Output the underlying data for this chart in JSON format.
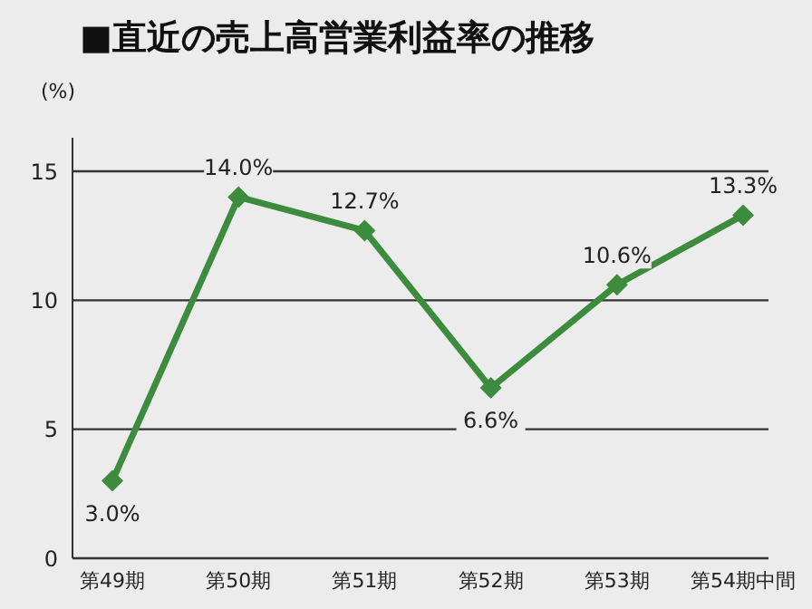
{
  "chart_data": {
    "type": "line",
    "title": "■直近の売上高営業利益率の推移",
    "ylabel": "(%)",
    "categories": [
      "第49期",
      "第50期",
      "第51期",
      "第52期",
      "第53期",
      "第54期中間"
    ],
    "series": [
      {
        "color": "#3d8b3d",
        "values": [
          3.0,
          14.0,
          12.7,
          6.6,
          10.6,
          13.3
        ],
        "value_labels": [
          "3.0%",
          "14.0%",
          "12.7%",
          "6.6%",
          "10.6%",
          "13.3%"
        ]
      }
    ],
    "ylim": [
      0,
      16.3
    ],
    "yticks": [
      0,
      5,
      10,
      15
    ],
    "grid": "y",
    "marker": "diamond",
    "line_style": "solid",
    "legend": false
  }
}
